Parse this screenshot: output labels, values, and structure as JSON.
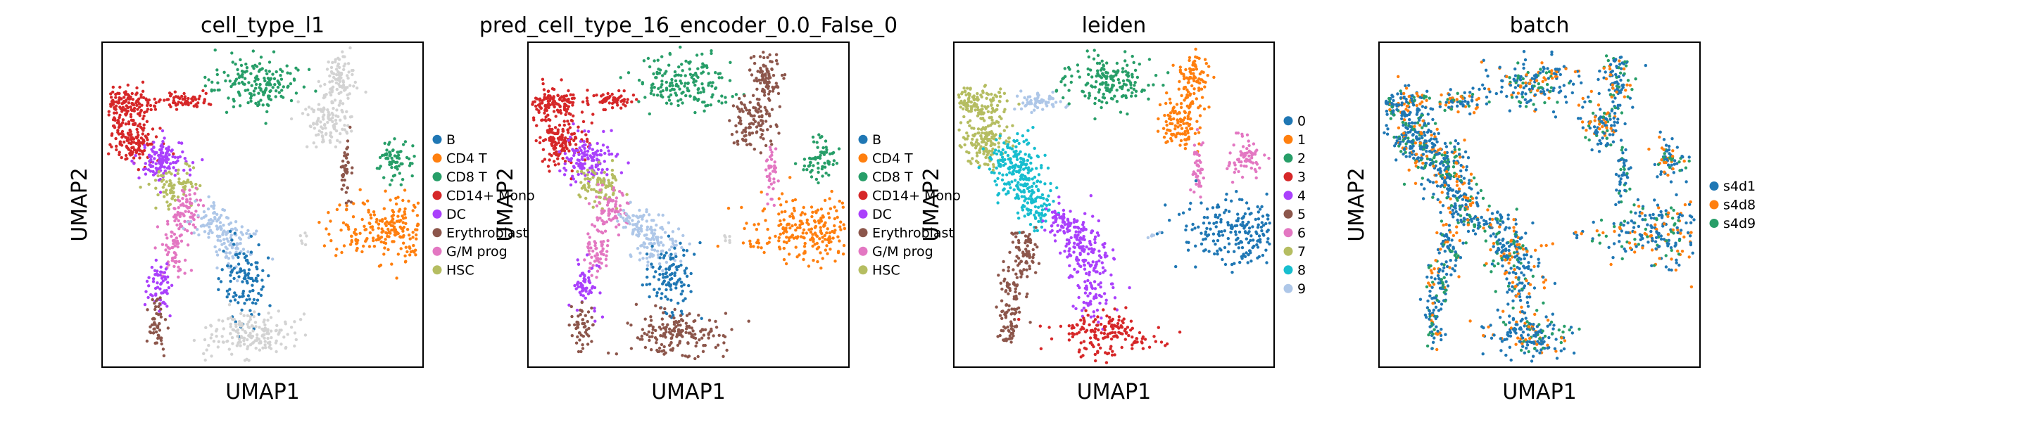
{
  "chart_data": [
    {
      "type": "scatter",
      "title": "cell_type_l1",
      "xlabel": "UMAP1",
      "ylabel": "UMAP2",
      "legend_position": "right",
      "legend": [
        {
          "label": "B",
          "color": "#1f77b4"
        },
        {
          "label": "CD4 T",
          "color": "#ff7f0e"
        },
        {
          "label": "CD8 T",
          "color": "#279e68"
        },
        {
          "label": "CD14+ Mono",
          "color": "#d62728"
        },
        {
          "label": "DC",
          "color": "#aa40fc"
        },
        {
          "label": "Erythroblast",
          "color": "#8c564b"
        },
        {
          "label": "G/M prog",
          "color": "#e377c2"
        },
        {
          "label": "HSC",
          "color": "#b5bd61"
        }
      ]
    },
    {
      "type": "scatter",
      "title": "pred_cell_type_16_encoder_0.0_False_0",
      "xlabel": "UMAP1",
      "ylabel": "UMAP2",
      "legend_position": "right",
      "legend": [
        {
          "label": "B",
          "color": "#1f77b4"
        },
        {
          "label": "CD4 T",
          "color": "#ff7f0e"
        },
        {
          "label": "CD8 T",
          "color": "#279e68"
        },
        {
          "label": "CD14+ Mono",
          "color": "#d62728"
        },
        {
          "label": "DC",
          "color": "#aa40fc"
        },
        {
          "label": "Erythroblast",
          "color": "#8c564b"
        },
        {
          "label": "G/M prog",
          "color": "#e377c2"
        },
        {
          "label": "HSC",
          "color": "#b5bd61"
        }
      ]
    },
    {
      "type": "scatter",
      "title": "leiden",
      "xlabel": "UMAP1",
      "ylabel": "UMAP2",
      "legend_position": "right",
      "legend": [
        {
          "label": "0",
          "color": "#1f77b4"
        },
        {
          "label": "1",
          "color": "#ff7f0e"
        },
        {
          "label": "2",
          "color": "#279e68"
        },
        {
          "label": "3",
          "color": "#d62728"
        },
        {
          "label": "4",
          "color": "#aa40fc"
        },
        {
          "label": "5",
          "color": "#8c564b"
        },
        {
          "label": "6",
          "color": "#e377c2"
        },
        {
          "label": "7",
          "color": "#b5bd61"
        },
        {
          "label": "8",
          "color": "#17becf"
        },
        {
          "label": "9",
          "color": "#aec7e8"
        }
      ]
    },
    {
      "type": "scatter",
      "title": "batch",
      "xlabel": "UMAP1",
      "ylabel": "UMAP2",
      "legend_position": "right",
      "legend": [
        {
          "label": "s4d1",
          "color": "#1f77b4"
        },
        {
          "label": "s4d8",
          "color": "#ff7f0e"
        },
        {
          "label": "s4d9",
          "color": "#279e68"
        }
      ]
    }
  ]
}
